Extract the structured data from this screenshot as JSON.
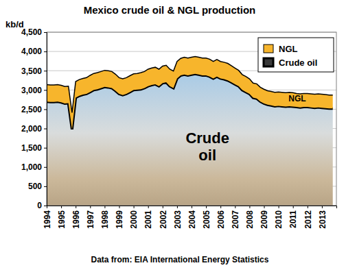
{
  "chart_data": {
    "type": "area",
    "title": "Mexico crude oil & NGL production",
    "y_label": "kb/d",
    "source": "Data from: EIA International Energy Statistics",
    "annotations": [
      "Crude oil",
      "NGL"
    ],
    "stacked": true,
    "grid": true,
    "legend": "top-right",
    "xlim": [
      1994,
      2014
    ],
    "xticks": [
      1994,
      1995,
      1996,
      1997,
      1998,
      1999,
      2000,
      2001,
      2002,
      2003,
      2004,
      2005,
      2006,
      2007,
      2008,
      2009,
      2010,
      2011,
      2012,
      2013
    ],
    "ylim": [
      0,
      4500
    ],
    "yticks": [
      0,
      500,
      {
        "value": 1000,
        "label": "1,000"
      },
      {
        "value": 1500,
        "label": "1,500"
      },
      {
        "value": 2000,
        "label": "2,000"
      },
      {
        "value": 2500,
        "label": "2,500"
      },
      {
        "value": 3000,
        "label": "3,000"
      },
      {
        "value": 3500,
        "label": "3,500"
      },
      {
        "value": 4000,
        "label": "4,000"
      },
      {
        "value": 4500,
        "label": "4,500"
      }
    ],
    "x": [
      1994,
      1994.25,
      1994.5,
      1994.75,
      1995,
      1995.25,
      1995.5,
      1995.75,
      1996,
      1996.25,
      1996.5,
      1996.75,
      1997,
      1997.25,
      1997.5,
      1997.75,
      1998,
      1998.25,
      1998.5,
      1998.75,
      1999,
      1999.25,
      1999.5,
      1999.75,
      2000,
      2000.25,
      2000.5,
      2000.75,
      2001,
      2001.25,
      2001.5,
      2001.75,
      2002,
      2002.25,
      2002.5,
      2002.75,
      2003,
      2003.25,
      2003.5,
      2003.75,
      2004,
      2004.25,
      2004.5,
      2004.75,
      2005,
      2005.25,
      2005.5,
      2005.75,
      2006,
      2006.25,
      2006.5,
      2006.75,
      2007,
      2007.25,
      2007.5,
      2007.75,
      2008,
      2008.25,
      2008.5,
      2008.75,
      2009,
      2009.25,
      2009.5,
      2009.75,
      2010,
      2010.25,
      2010.5,
      2010.75,
      2011,
      2011.25,
      2011.5,
      2011.75,
      2012,
      2012.25,
      2012.5,
      2012.75,
      2013,
      2013.25,
      2013.5,
      2013.75
    ],
    "series": [
      {
        "name": "Crude oil",
        "color": "#000000",
        "values": [
          2700,
          2690,
          2690,
          2700,
          2680,
          2650,
          2660,
          1980,
          2800,
          2850,
          2880,
          2900,
          2950,
          3000,
          3020,
          3050,
          3080,
          3070,
          3050,
          2980,
          2900,
          2870,
          2900,
          2950,
          3000,
          3010,
          3020,
          3050,
          3100,
          3130,
          3150,
          3100,
          3180,
          3200,
          3100,
          3050,
          3300,
          3380,
          3400,
          3380,
          3400,
          3420,
          3400,
          3380,
          3380,
          3350,
          3300,
          3350,
          3300,
          3280,
          3250,
          3200,
          3150,
          3100,
          3000,
          2950,
          2900,
          2800,
          2780,
          2700,
          2650,
          2620,
          2600,
          2580,
          2590,
          2580,
          2570,
          2580,
          2570,
          2560,
          2550,
          2560,
          2560,
          2550,
          2540,
          2550,
          2540,
          2530,
          2520,
          2520
        ]
      },
      {
        "name": "NGL",
        "color": "#f7b52c",
        "values": [
          440,
          440,
          440,
          440,
          440,
          440,
          440,
          430,
          420,
          420,
          420,
          420,
          430,
          430,
          430,
          430,
          430,
          430,
          430,
          430,
          420,
          420,
          420,
          420,
          420,
          420,
          430,
          430,
          440,
          440,
          440,
          440,
          440,
          440,
          440,
          440,
          440,
          440,
          450,
          450,
          450,
          450,
          450,
          450,
          450,
          450,
          440,
          440,
          440,
          440,
          440,
          430,
          420,
          410,
          400,
          400,
          390,
          380,
          380,
          370,
          370,
          360,
          360,
          360,
          360,
          360,
          360,
          360,
          360,
          350,
          350,
          350,
          350,
          350,
          350,
          350,
          350,
          350,
          350,
          350
        ]
      }
    ]
  }
}
